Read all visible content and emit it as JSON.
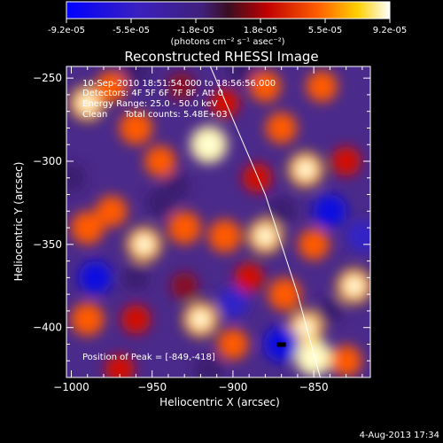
{
  "chart_data": {
    "type": "heatmap",
    "title": "Reconstructed RHESSI Image",
    "xlabel": "Heliocentric X (arcsec)",
    "ylabel": "Heliocentric Y (arcsec)",
    "xlim": [
      -1003,
      -815
    ],
    "ylim": [
      -430,
      -243
    ],
    "xticks": [
      -1000,
      -950,
      -900,
      -850
    ],
    "yticks": [
      -250,
      -300,
      -350,
      -400
    ],
    "colorbar": {
      "range": [
        -9.2e-05,
        9.2e-05
      ],
      "tick_labels": [
        "-9.2e-05",
        "-5.5e-05",
        "-1.8e-05",
        "1.8e-05",
        "5.5e-05",
        "9.2e-05"
      ],
      "label": "(photons cm⁻² s⁻¹ asec⁻²)"
    },
    "annotations": [
      "10-Sep-2010 18:51:54.000 to 18:56:56.000",
      "Detectors: 4F 5F 6F 7F 8F, Att 0",
      "Energy Range: 25.0 - 50.0 keV",
      "Clean      Total counts: 5.48E+03"
    ],
    "peak_label": "Position of Peak = [-849,-418]",
    "peak": [
      -849,
      -418
    ],
    "limb_curve": [
      [
        -914,
        -243
      ],
      [
        -880,
        -320
      ],
      [
        -860,
        -380
      ],
      [
        -846,
        -430
      ]
    ],
    "blobs": [
      {
        "x": -990,
        "y": -265,
        "v": 0.9
      },
      {
        "x": -975,
        "y": -255,
        "v": 0.7
      },
      {
        "x": -960,
        "y": -280,
        "v": 0.8
      },
      {
        "x": -945,
        "y": -300,
        "v": 0.7
      },
      {
        "x": -915,
        "y": -290,
        "v": 1.0
      },
      {
        "x": -905,
        "y": -265,
        "v": 0.6
      },
      {
        "x": -932,
        "y": -255,
        "v": 0.5
      },
      {
        "x": -880,
        "y": -255,
        "v": 0.7
      },
      {
        "x": -870,
        "y": -280,
        "v": 0.7
      },
      {
        "x": -855,
        "y": -305,
        "v": 0.9
      },
      {
        "x": -845,
        "y": -255,
        "v": 0.7
      },
      {
        "x": -830,
        "y": -300,
        "v": 0.6
      },
      {
        "x": -885,
        "y": -310,
        "v": 0.6
      },
      {
        "x": -990,
        "y": -340,
        "v": 0.8
      },
      {
        "x": -975,
        "y": -330,
        "v": 0.7
      },
      {
        "x": -955,
        "y": -350,
        "v": 0.9
      },
      {
        "x": -930,
        "y": -340,
        "v": 0.8
      },
      {
        "x": -905,
        "y": -345,
        "v": 0.8
      },
      {
        "x": -880,
        "y": -345,
        "v": 0.9
      },
      {
        "x": -890,
        "y": -370,
        "v": 0.6
      },
      {
        "x": -850,
        "y": -350,
        "v": 0.7
      },
      {
        "x": -825,
        "y": -375,
        "v": 0.9
      },
      {
        "x": -990,
        "y": -395,
        "v": 0.8
      },
      {
        "x": -960,
        "y": -395,
        "v": 0.6
      },
      {
        "x": -920,
        "y": -395,
        "v": 0.9
      },
      {
        "x": -900,
        "y": -410,
        "v": 0.7
      },
      {
        "x": -868,
        "y": -380,
        "v": 0.8
      },
      {
        "x": -855,
        "y": -400,
        "v": 0.9
      },
      {
        "x": -850,
        "y": -418,
        "v": 1.0
      },
      {
        "x": -830,
        "y": -420,
        "v": 0.7
      },
      {
        "x": -970,
        "y": -425,
        "v": 0.6
      },
      {
        "x": -930,
        "y": -375,
        "v": 0.5
      },
      {
        "x": -870,
        "y": -410,
        "v": -0.9
      },
      {
        "x": -985,
        "y": -370,
        "v": -0.8
      },
      {
        "x": -945,
        "y": -325,
        "v": -0.6
      },
      {
        "x": -900,
        "y": -385,
        "v": -0.7
      },
      {
        "x": -840,
        "y": -330,
        "v": -0.8
      },
      {
        "x": -820,
        "y": -345,
        "v": -0.7
      },
      {
        "x": -870,
        "y": -330,
        "v": -0.6
      },
      {
        "x": -960,
        "y": -245,
        "v": -0.6
      },
      {
        "x": -895,
        "y": -245,
        "v": -0.6
      },
      {
        "x": -1000,
        "y": -310,
        "v": -0.6
      },
      {
        "x": -915,
        "y": -425,
        "v": -0.6
      },
      {
        "x": -935,
        "y": -315,
        "v": -0.5
      },
      {
        "x": -840,
        "y": -390,
        "v": -0.5
      },
      {
        "x": -960,
        "y": -370,
        "v": -0.5
      }
    ]
  },
  "footer": {
    "timestamp": "4-Aug-2013 17:34"
  }
}
